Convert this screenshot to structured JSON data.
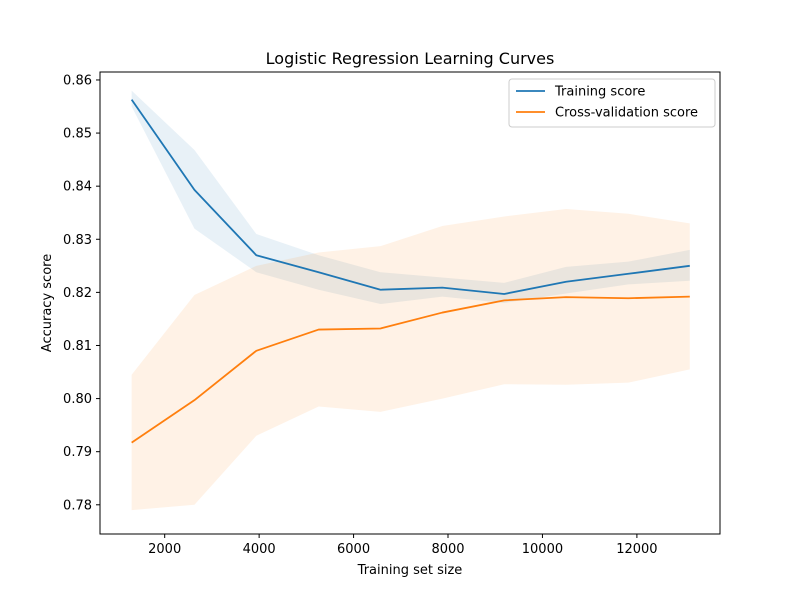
{
  "chart_data": {
    "type": "line",
    "title": "Logistic Regression Learning Curves",
    "xlabel": "Training set size",
    "ylabel": "Accuracy score",
    "xlim": [
      630,
      13760
    ],
    "ylim": [
      0.7745,
      0.8615
    ],
    "xticks": [
      2000,
      4000,
      6000,
      8000,
      10000,
      12000
    ],
    "xtick_labels": [
      "2000",
      "4000",
      "6000",
      "8000",
      "10000",
      "12000"
    ],
    "yticks": [
      0.78,
      0.79,
      0.8,
      0.81,
      0.82,
      0.83,
      0.84,
      0.85,
      0.86
    ],
    "ytick_labels": [
      "0.78",
      "0.79",
      "0.80",
      "0.81",
      "0.82",
      "0.83",
      "0.84",
      "0.85",
      "0.86"
    ],
    "grid": false,
    "legend_position": "top-right",
    "x": [
      1300,
      2630,
      3940,
      5260,
      6570,
      7880,
      9190,
      10500,
      11820,
      13120
    ],
    "series": [
      {
        "name": "Training score",
        "color": "#1f77b4",
        "band_color": "#1f77b4",
        "values": [
          0.8563,
          0.8393,
          0.827,
          0.8238,
          0.8205,
          0.8209,
          0.8197,
          0.822,
          0.8235,
          0.825
        ],
        "lower": [
          0.855,
          0.832,
          0.8238,
          0.8205,
          0.8178,
          0.8192,
          0.818,
          0.8198,
          0.8215,
          0.8222
        ],
        "upper": [
          0.858,
          0.8468,
          0.831,
          0.827,
          0.8238,
          0.8228,
          0.8218,
          0.8248,
          0.8258,
          0.828
        ]
      },
      {
        "name": "Cross-validation score",
        "color": "#ff7f0e",
        "band_color": "#ff7f0e",
        "values": [
          0.7917,
          0.7997,
          0.809,
          0.813,
          0.8132,
          0.8162,
          0.8185,
          0.8191,
          0.8189,
          0.8192
        ],
        "lower": [
          0.779,
          0.78,
          0.793,
          0.7985,
          0.7975,
          0.8,
          0.8027,
          0.8026,
          0.803,
          0.8055
        ],
        "upper": [
          0.8045,
          0.8195,
          0.825,
          0.8275,
          0.8287,
          0.8325,
          0.8343,
          0.8357,
          0.8348,
          0.833
        ]
      }
    ]
  }
}
